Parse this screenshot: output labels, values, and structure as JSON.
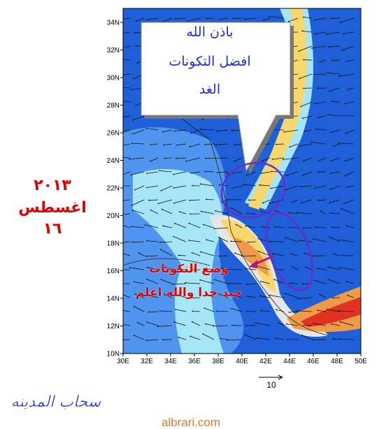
{
  "map": {
    "lat_ticks": [
      {
        "value": 10,
        "label": "10N"
      },
      {
        "value": 12,
        "label": "12N"
      },
      {
        "value": 14,
        "label": "14N"
      },
      {
        "value": 16,
        "label": "16N"
      },
      {
        "value": 18,
        "label": "18N"
      },
      {
        "value": 20,
        "label": "20N"
      },
      {
        "value": 22,
        "label": "22N"
      },
      {
        "value": 24,
        "label": "24N"
      },
      {
        "value": 26,
        "label": "26N"
      },
      {
        "value": 28,
        "label": "28N"
      },
      {
        "value": 30,
        "label": "30N"
      },
      {
        "value": 32,
        "label": "32N"
      },
      {
        "value": 34,
        "label": "34N"
      }
    ],
    "lon_ticks": [
      {
        "value": 30,
        "label": "30E"
      },
      {
        "value": 32,
        "label": "32E"
      },
      {
        "value": 34,
        "label": "34E"
      },
      {
        "value": 36,
        "label": "36E"
      },
      {
        "value": 38,
        "label": "38E"
      },
      {
        "value": 40,
        "label": "40E"
      },
      {
        "value": 42,
        "label": "42E"
      },
      {
        "value": 44,
        "label": "44E"
      },
      {
        "value": 46,
        "label": "46E"
      },
      {
        "value": 48,
        "label": "48E"
      },
      {
        "value": 50,
        "label": "50E"
      }
    ],
    "scale_label": "10"
  },
  "bubble": {
    "lines": [
      "باذن الله",
      "افضل التكونات",
      "الغد"
    ]
  },
  "date": {
    "lines": [
      "٢٠١٣",
      "اغسطس",
      "١٦"
    ]
  },
  "note": {
    "lines": [
      "وضع التكونات",
      "جيد جدا والله اعلم"
    ]
  },
  "signature": "سحاب المدينه",
  "footer": "albrari.com"
}
